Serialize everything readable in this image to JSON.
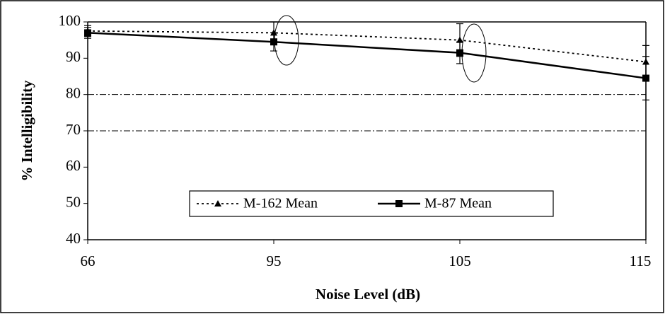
{
  "chart_data": {
    "type": "line",
    "xlabel": "Noise Level (dB)",
    "ylabel": "% Intelligibility",
    "categories": [
      "66",
      "95",
      "105",
      "115"
    ],
    "series": [
      {
        "name": "M-162 Mean",
        "color": "#000000",
        "style": "dotted",
        "marker": "triangle",
        "values": [
          97.5,
          97,
          95,
          89
        ],
        "errors": [
          1.5,
          3,
          4.5,
          4.5
        ]
      },
      {
        "name": "M-87 Mean",
        "color": "#000000",
        "style": "solid",
        "marker": "square",
        "values": [
          97,
          94.5,
          91.5,
          84.5
        ],
        "errors": [
          1.5,
          2.5,
          3,
          6
        ]
      }
    ],
    "reference_lines": [
      80,
      70
    ],
    "ylim": [
      40,
      100
    ],
    "yticks": [
      40,
      50,
      60,
      70,
      80,
      90,
      100
    ]
  }
}
